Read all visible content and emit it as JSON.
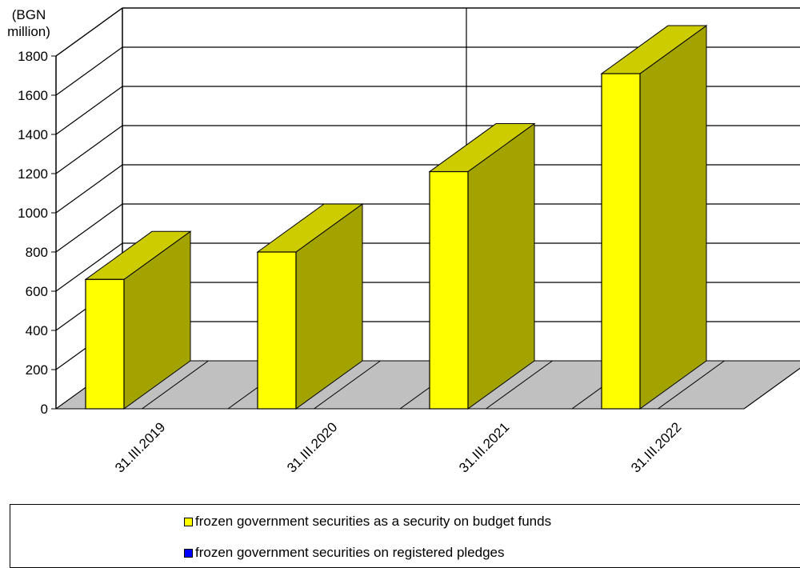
{
  "chart_data": {
    "type": "bar",
    "title": "",
    "unit_label_lines": [
      "(BGN",
      "million)"
    ],
    "categories": [
      "31.III.2019",
      "31.III.2020",
      "31.III.2021",
      "31.III.2022"
    ],
    "series": [
      {
        "name": "frozen government securities as a security on budget funds",
        "values": [
          660,
          800,
          1210,
          1710
        ],
        "color": "#FFFF00",
        "side_color": "#A3A300",
        "top_color": "#CCCC00"
      },
      {
        "name": "frozen government securities on registered pledges",
        "values": [
          0,
          0,
          0,
          0
        ],
        "color": "#0000FF"
      }
    ],
    "y_ticks": [
      "0",
      "200",
      "400",
      "600",
      "800",
      "1000",
      "1200",
      "1400",
      "1600",
      "1800"
    ],
    "ylim": [
      0,
      1800
    ],
    "grid": true,
    "style": "3d",
    "floor_color": "#C0C0C0",
    "legend_position": "bottom"
  }
}
